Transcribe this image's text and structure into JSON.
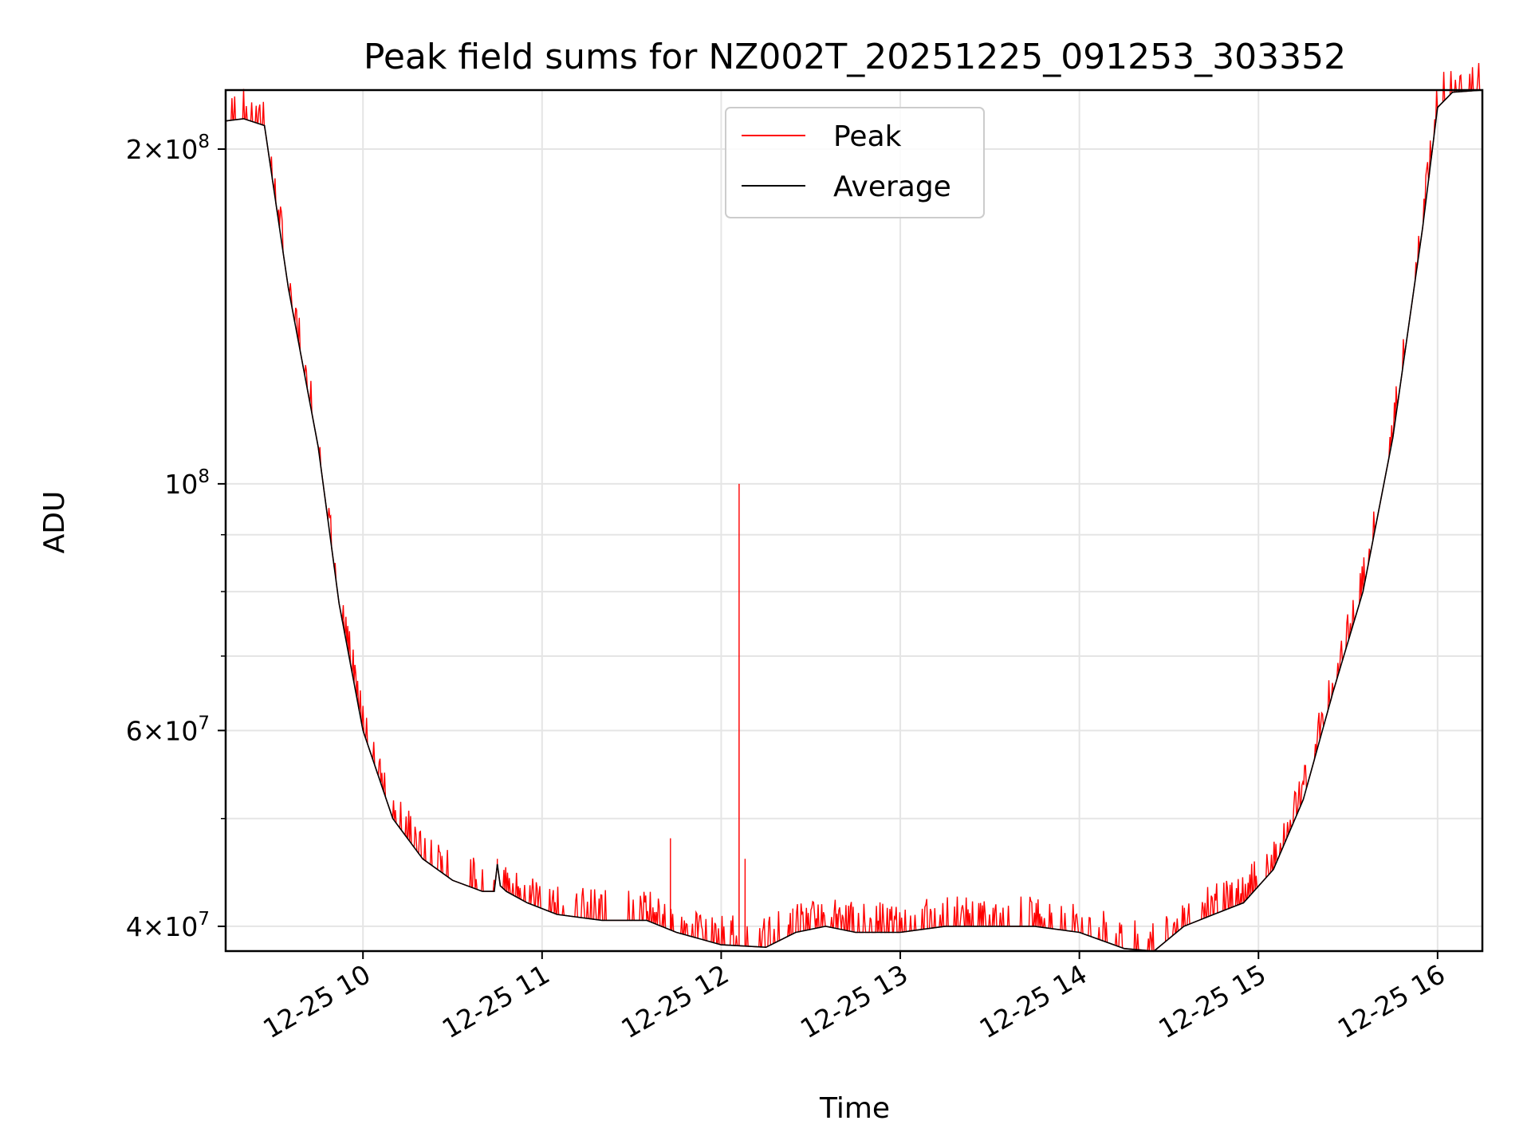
{
  "chart_data": {
    "type": "line",
    "title": "Peak field sums for NZ002T_20251225_091253_303352",
    "xlabel": "Time",
    "ylabel": "ADU",
    "y_scale": "log",
    "xlim": [
      "2025-12-25 09:14",
      "2025-12-25 16:15"
    ],
    "ylim": [
      38000000,
      226000000
    ],
    "grid": true,
    "legend_position": "upper center",
    "x_ticks": [
      {
        "value": "2025-12-25 10:00",
        "label": "12-25 10"
      },
      {
        "value": "2025-12-25 11:00",
        "label": "12-25 11"
      },
      {
        "value": "2025-12-25 12:00",
        "label": "12-25 12"
      },
      {
        "value": "2025-12-25 13:00",
        "label": "12-25 13"
      },
      {
        "value": "2025-12-25 14:00",
        "label": "12-25 14"
      },
      {
        "value": "2025-12-25 15:00",
        "label": "12-25 15"
      },
      {
        "value": "2025-12-25 16:00",
        "label": "12-25 16"
      }
    ],
    "y_ticks": [
      {
        "value": 40000000,
        "mantissa": "4",
        "exponent": "7"
      },
      {
        "value": 60000000,
        "mantissa": "6",
        "exponent": "7"
      },
      {
        "value": 100000000,
        "mantissa": "",
        "exponent": "8"
      },
      {
        "value": 200000000,
        "mantissa": "2",
        "exponent": "8"
      }
    ],
    "y_minor_ticks": [
      50000000,
      70000000,
      80000000,
      90000000
    ],
    "series": [
      {
        "name": "Peak",
        "color": "#ff0000",
        "x": [
          "2025-12-25 10:45",
          "2025-12-25 11:43",
          "2025-12-25 12:06",
          "2025-12-25 12:08",
          "2025-12-25 12:24"
        ],
        "y": [
          46000000,
          48000000,
          100000000,
          46000000,
          41500000
        ]
      },
      {
        "name": "Average",
        "color": "#000000",
        "x": [
          "2025-12-25 09:14",
          "2025-12-25 09:20",
          "2025-12-25 09:27",
          "2025-12-25 09:35",
          "2025-12-25 09:45",
          "2025-12-25 09:52",
          "2025-12-25 10:00",
          "2025-12-25 10:10",
          "2025-12-25 10:20",
          "2025-12-25 10:30",
          "2025-12-25 10:40",
          "2025-12-25 10:44",
          "2025-12-25 10:45",
          "2025-12-25 10:46",
          "2025-12-25 10:48",
          "2025-12-25 10:55",
          "2025-12-25 11:05",
          "2025-12-25 11:20",
          "2025-12-25 11:35",
          "2025-12-25 11:45",
          "2025-12-25 12:00",
          "2025-12-25 12:15",
          "2025-12-25 12:25",
          "2025-12-25 12:35",
          "2025-12-25 12:45",
          "2025-12-25 13:00",
          "2025-12-25 13:15",
          "2025-12-25 13:30",
          "2025-12-25 13:45",
          "2025-12-25 14:00",
          "2025-12-25 14:15",
          "2025-12-25 14:25",
          "2025-12-25 14:35",
          "2025-12-25 14:45",
          "2025-12-25 14:55",
          "2025-12-25 15:05",
          "2025-12-25 15:15",
          "2025-12-25 15:25",
          "2025-12-25 15:35",
          "2025-12-25 15:45",
          "2025-12-25 15:55",
          "2025-12-25 16:00",
          "2025-12-25 16:05",
          "2025-12-25 16:15"
        ],
        "y": [
          212000000,
          213000000,
          210000000,
          150000000,
          108000000,
          78000000,
          60000000,
          50000000,
          46000000,
          44000000,
          43000000,
          43000000,
          45500000,
          43500000,
          43000000,
          42000000,
          41000000,
          40500000,
          40500000,
          39500000,
          38500000,
          38300000,
          39500000,
          40000000,
          39500000,
          39500000,
          40000000,
          40000000,
          40000000,
          39500000,
          38200000,
          38000000,
          40000000,
          41000000,
          42000000,
          45000000,
          52000000,
          65000000,
          80000000,
          110000000,
          170000000,
          218000000,
          225000000,
          226000000
        ]
      }
    ]
  }
}
